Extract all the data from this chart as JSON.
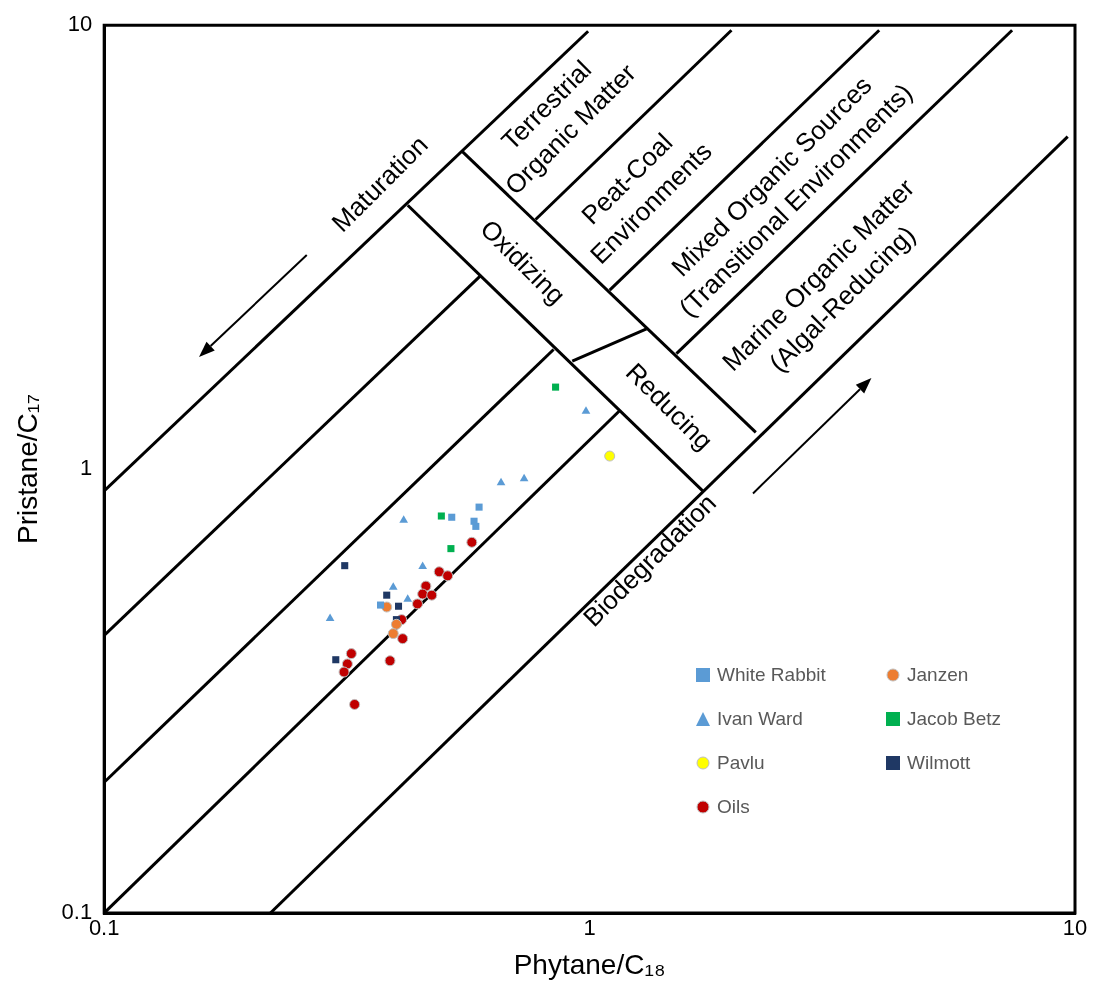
{
  "chart_data": {
    "type": "scatter",
    "xlabel": "Phytane/C₁₈",
    "ylabel": "Pristane/C₁₇",
    "log": "xy",
    "grid": false,
    "legend": "bottom right",
    "xlim": [
      0.1,
      10
    ],
    "ylim": [
      0.1,
      10
    ],
    "xticks": [
      0.1,
      1,
      10
    ],
    "yticks": [
      0.1,
      1,
      10
    ],
    "series": [
      {
        "name": "White Rabbit",
        "type": "scatter",
        "marker": "square",
        "color": "#5b9bd5",
        "x": [
          0.592,
          0.52,
          0.578,
          0.583,
          0.371
        ],
        "values": [
          0.821,
          0.779,
          0.763,
          0.743,
          0.494
        ]
      },
      {
        "name": "Janzen",
        "type": "scatter",
        "marker": "circle",
        "color": "#ed7d31",
        "x": [
          0.382,
          0.4,
          0.394
        ],
        "values": [
          0.489,
          0.447,
          0.426
        ]
      },
      {
        "name": "Ivan Ward",
        "type": "scatter",
        "marker": "triangle",
        "color": "#5b9bd5",
        "x": [
          0.983,
          0.733,
          0.657,
          0.414,
          0.453,
          0.394,
          0.422,
          0.292
        ],
        "values": [
          1.35,
          0.951,
          0.932,
          0.767,
          0.603,
          0.542,
          0.509,
          0.461
        ]
      },
      {
        "name": "Jacob Betz",
        "type": "scatter",
        "marker": "square",
        "color": "#00b050",
        "x": [
          0.851,
          0.495,
          0.518
        ],
        "values": [
          1.53,
          0.784,
          0.662
        ]
      },
      {
        "name": "Pavlu",
        "type": "scatter",
        "marker": "circle",
        "color": "#ffff00",
        "x": [
          1.1
        ],
        "values": [
          1.07
        ]
      },
      {
        "name": "Wilmott",
        "type": "scatter",
        "marker": "square",
        "color": "#1f3864",
        "x": [
          0.313,
          0.382,
          0.404,
          0.4,
          0.3
        ],
        "values": [
          0.606,
          0.52,
          0.491,
          0.458,
          0.372
        ]
      },
      {
        "name": "Oils",
        "type": "scatter",
        "marker": "circle",
        "color": "#c00000",
        "x": [
          0.572,
          0.49,
          0.51,
          0.46,
          0.453,
          0.473,
          0.442,
          0.41,
          0.412,
          0.323,
          0.317,
          0.312,
          0.388,
          0.328
        ],
        "values": [
          0.684,
          0.587,
          0.575,
          0.545,
          0.523,
          0.52,
          0.497,
          0.458,
          0.415,
          0.384,
          0.364,
          0.349,
          0.37,
          0.295
        ]
      },
      {
        "type": "line",
        "marker": "none",
        "color": "#000000",
        "x": [
          0.1,
          0.993
        ],
        "values": [
          0.893,
          9.69
        ]
      },
      {
        "type": "line",
        "marker": "none",
        "color": "#000000",
        "x": [
          0.1,
          0.595
        ],
        "values": [
          0.422,
          2.72
        ]
      },
      {
        "type": "line",
        "marker": "none",
        "color": "#000000",
        "x": [
          0.1,
          0.843
        ],
        "values": [
          0.197,
          1.86
        ]
      },
      {
        "type": "line",
        "marker": "none",
        "color": "#000000",
        "x": [
          0.1,
          1.15
        ],
        "values": [
          0.1,
          1.35
        ]
      },
      {
        "type": "line",
        "marker": "none",
        "color": "#000000",
        "x": [
          0.22,
          9.66
        ],
        "values": [
          0.1,
          5.61
        ]
      },
      {
        "type": "line",
        "marker": "none",
        "color": "#000000",
        "x": [
          0.422,
          1.71
        ],
        "values": [
          3.93,
          0.893
        ]
      },
      {
        "type": "line",
        "marker": "none",
        "color": "#000000",
        "x": [
          0.547,
          2.2
        ],
        "values": [
          5.19,
          1.21
        ]
      },
      {
        "type": "line",
        "marker": "none",
        "color": "#000000",
        "x": [
          0.774,
          1.96
        ],
        "values": [
          3.65,
          9.74
        ]
      },
      {
        "type": "line",
        "marker": "none",
        "color": "#000000",
        "x": [
          1.1,
          3.95
        ],
        "values": [
          2.53,
          9.74
        ]
      },
      {
        "type": "line",
        "marker": "none",
        "color": "#000000",
        "x": [
          1.51,
          7.42
        ],
        "values": [
          1.82,
          9.74
        ]
      },
      {
        "type": "line",
        "marker": "none",
        "color": "#000000",
        "x": [
          0.921,
          1.31
        ],
        "values": [
          1.75,
          2.07
        ]
      }
    ],
    "annotations": [
      "Maturation",
      "Terrestrial\nOrganic Matter",
      "Peat-Coal\nEnvironments",
      "Mixed Organic Sources\n(Transitional Environments)",
      "Marine Organic Matter\n(Algal-Reducing)",
      "Oxidizing",
      "Reducing",
      "Biodegradation"
    ]
  }
}
